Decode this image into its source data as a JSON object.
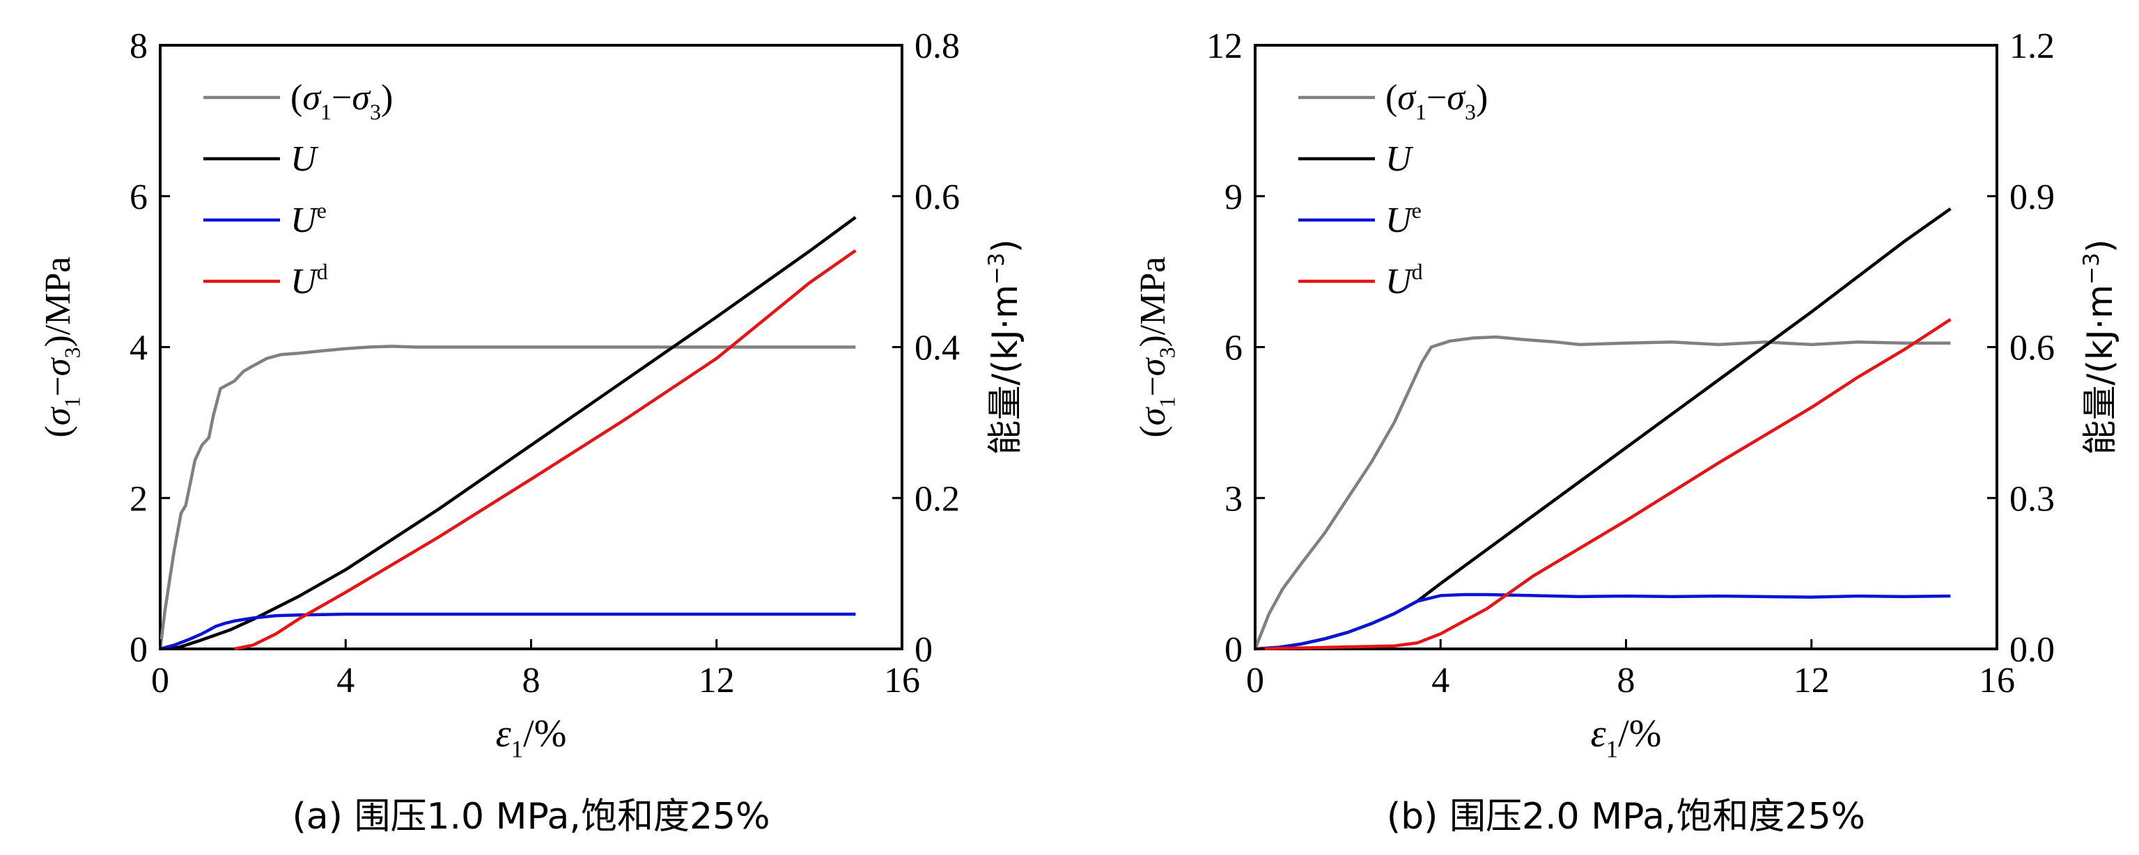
{
  "colors": {
    "stress": "#808080",
    "U": "#000000",
    "Ue": "#0a14d2",
    "Ud": "#e61414",
    "axis": "#000000"
  },
  "chart_data": [
    {
      "type": "line",
      "caption": "(a) 围压1.0 MPa,饱和度25%",
      "xlabel": "ε1/%",
      "ylabel_left": "(σ1−σ3)/MPa",
      "ylabel_right": "能量/(kJ·m−3)",
      "xlim": [
        0,
        16
      ],
      "ylim_left": [
        0,
        8
      ],
      "ylim_right": [
        0,
        0.8
      ],
      "xticks": [
        "0",
        "4",
        "8",
        "12",
        "16"
      ],
      "yticks_left": [
        "0",
        "2",
        "4",
        "6",
        "8"
      ],
      "yticks_right": [
        "0",
        "0.2",
        "0.4",
        "0.6",
        "0.8"
      ],
      "legend": [
        "(σ1−σ3)",
        "U",
        "Ue",
        "Ud"
      ],
      "legend_position": "top-left",
      "series": [
        {
          "name": "(σ1−σ3)",
          "axis": "left",
          "color": "stress",
          "points": [
            [
              0,
              0
            ],
            [
              0.1,
              0.5
            ],
            [
              0.2,
              0.9
            ],
            [
              0.3,
              1.3
            ],
            [
              0.45,
              1.8
            ],
            [
              0.55,
              1.9
            ],
            [
              0.65,
              2.2
            ],
            [
              0.75,
              2.5
            ],
            [
              0.9,
              2.7
            ],
            [
              1.05,
              2.8
            ],
            [
              1.15,
              3.1
            ],
            [
              1.3,
              3.45
            ],
            [
              1.45,
              3.5
            ],
            [
              1.6,
              3.55
            ],
            [
              1.8,
              3.68
            ],
            [
              2.0,
              3.75
            ],
            [
              2.3,
              3.85
            ],
            [
              2.6,
              3.9
            ],
            [
              3.0,
              3.92
            ],
            [
              3.5,
              3.95
            ],
            [
              4.0,
              3.98
            ],
            [
              4.5,
              4.0
            ],
            [
              5.0,
              4.01
            ],
            [
              5.5,
              4.0
            ],
            [
              6,
              4.0
            ],
            [
              8,
              4.0
            ],
            [
              10,
              4.0
            ],
            [
              12,
              4.0
            ],
            [
              15,
              4.0
            ]
          ]
        },
        {
          "name": "U",
          "axis": "right",
          "color": "U",
          "points": [
            [
              0,
              0
            ],
            [
              0.4,
              0.002
            ],
            [
              0.8,
              0.01
            ],
            [
              1.5,
              0.025
            ],
            [
              2,
              0.039
            ],
            [
              3,
              0.07
            ],
            [
              4,
              0.105
            ],
            [
              6,
              0.185
            ],
            [
              8,
              0.27
            ],
            [
              10,
              0.355
            ],
            [
              12,
              0.44
            ],
            [
              14,
              0.527
            ],
            [
              15,
              0.572
            ]
          ]
        },
        {
          "name": "Ue",
          "axis": "right",
          "color": "Ue",
          "points": [
            [
              0,
              0
            ],
            [
              0.3,
              0.005
            ],
            [
              0.6,
              0.012
            ],
            [
              0.9,
              0.02
            ],
            [
              1.2,
              0.03
            ],
            [
              1.4,
              0.034
            ],
            [
              1.6,
              0.037
            ],
            [
              2,
              0.041
            ],
            [
              2.5,
              0.044
            ],
            [
              3,
              0.045
            ],
            [
              4,
              0.046
            ],
            [
              5,
              0.046
            ],
            [
              8,
              0.046
            ],
            [
              12,
              0.046
            ],
            [
              15,
              0.046
            ]
          ]
        },
        {
          "name": "Ud",
          "axis": "right",
          "color": "Ud",
          "points": [
            [
              1.6,
              0
            ],
            [
              2,
              0.005
            ],
            [
              2.5,
              0.02
            ],
            [
              3,
              0.04
            ],
            [
              4,
              0.075
            ],
            [
              6,
              0.148
            ],
            [
              8,
              0.225
            ],
            [
              10,
              0.303
            ],
            [
              12,
              0.385
            ],
            [
              14,
              0.485
            ],
            [
              15,
              0.528
            ]
          ]
        }
      ]
    },
    {
      "type": "line",
      "caption": "(b) 围压2.0 MPa,饱和度25%",
      "xlabel": "ε1/%",
      "ylabel_left": "(σ1−σ3)/MPa",
      "ylabel_right": "能量/(kJ·m−3)",
      "xlim": [
        0,
        16
      ],
      "ylim_left": [
        0,
        12
      ],
      "ylim_right": [
        0,
        1.2
      ],
      "xticks": [
        "0",
        "4",
        "8",
        "12",
        "16"
      ],
      "yticks_left": [
        "0",
        "3",
        "6",
        "9",
        "12"
      ],
      "yticks_right": [
        "0.0",
        "0.3",
        "0.6",
        "0.9",
        "1.2"
      ],
      "legend": [
        "(σ1−σ3)",
        "U",
        "Ue",
        "Ud"
      ],
      "legend_position": "top-left",
      "series": [
        {
          "name": "(σ1−σ3)",
          "axis": "left",
          "color": "stress",
          "points": [
            [
              0,
              0
            ],
            [
              0.3,
              0.7
            ],
            [
              0.6,
              1.2
            ],
            [
              1.0,
              1.7
            ],
            [
              1.5,
              2.3
            ],
            [
              2.0,
              3.0
            ],
            [
              2.5,
              3.7
            ],
            [
              3.0,
              4.5
            ],
            [
              3.3,
              5.1
            ],
            [
              3.6,
              5.7
            ],
            [
              3.8,
              6.0
            ],
            [
              4.2,
              6.12
            ],
            [
              4.7,
              6.18
            ],
            [
              5.2,
              6.2
            ],
            [
              5.8,
              6.15
            ],
            [
              6.5,
              6.1
            ],
            [
              7,
              6.05
            ],
            [
              8,
              6.08
            ],
            [
              9,
              6.1
            ],
            [
              10,
              6.05
            ],
            [
              11,
              6.1
            ],
            [
              12,
              6.05
            ],
            [
              13,
              6.1
            ],
            [
              14,
              6.08
            ],
            [
              15,
              6.08
            ]
          ]
        },
        {
          "name": "U",
          "axis": "right",
          "color": "U",
          "points": [
            [
              0,
              0
            ],
            [
              0.5,
              0.003
            ],
            [
              1,
              0.01
            ],
            [
              1.5,
              0.02
            ],
            [
              2,
              0.033
            ],
            [
              2.5,
              0.05
            ],
            [
              3,
              0.07
            ],
            [
              3.5,
              0.095
            ],
            [
              4,
              0.13
            ],
            [
              6,
              0.265
            ],
            [
              8,
              0.4
            ],
            [
              10,
              0.535
            ],
            [
              12,
              0.67
            ],
            [
              14,
              0.81
            ],
            [
              15,
              0.875
            ]
          ]
        },
        {
          "name": "Ue",
          "axis": "right",
          "color": "Ue",
          "points": [
            [
              0,
              0
            ],
            [
              0.5,
              0.003
            ],
            [
              1,
              0.01
            ],
            [
              1.5,
              0.02
            ],
            [
              2,
              0.033
            ],
            [
              2.5,
              0.05
            ],
            [
              3,
              0.07
            ],
            [
              3.5,
              0.095
            ],
            [
              4,
              0.106
            ],
            [
              4.5,
              0.108
            ],
            [
              5,
              0.108
            ],
            [
              6,
              0.106
            ],
            [
              7,
              0.104
            ],
            [
              8,
              0.105
            ],
            [
              9,
              0.104
            ],
            [
              10,
              0.105
            ],
            [
              11,
              0.104
            ],
            [
              12,
              0.103
            ],
            [
              13,
              0.105
            ],
            [
              14,
              0.104
            ],
            [
              15,
              0.105
            ]
          ]
        },
        {
          "name": "Ud",
          "axis": "right",
          "color": "Ud",
          "points": [
            [
              0,
              0
            ],
            [
              1,
              0.002
            ],
            [
              2,
              0.004
            ],
            [
              3,
              0.006
            ],
            [
              3.5,
              0.012
            ],
            [
              4,
              0.03
            ],
            [
              5,
              0.08
            ],
            [
              6,
              0.145
            ],
            [
              8,
              0.255
            ],
            [
              10,
              0.37
            ],
            [
              12,
              0.48
            ],
            [
              13,
              0.54
            ],
            [
              14,
              0.595
            ],
            [
              15,
              0.655
            ]
          ]
        }
      ]
    }
  ]
}
